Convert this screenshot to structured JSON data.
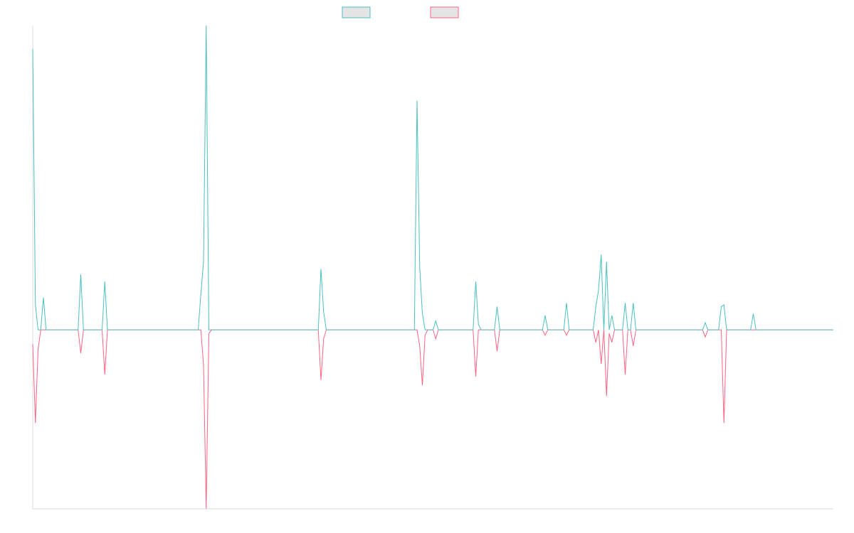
{
  "chart_data": {
    "type": "line",
    "title": "",
    "xlabel": "",
    "ylabel": "",
    "grid": false,
    "legend_placement": "top-center",
    "ylim": [
      -1.0,
      1.7
    ],
    "series": [
      {
        "color": "#4bc0c0",
        "fill": "#e5e5e5",
        "points": [
          [
            0,
            1.57
          ],
          [
            1,
            0.14
          ],
          [
            2,
            0.0
          ],
          [
            3,
            0.0
          ],
          [
            4,
            0.18
          ],
          [
            5,
            0.0
          ],
          [
            6,
            0.0
          ],
          [
            7,
            0.0
          ],
          [
            17,
            0.0
          ],
          [
            18,
            0.31
          ],
          [
            19,
            0.0
          ],
          [
            20,
            0.0
          ],
          [
            26,
            0.0
          ],
          [
            27,
            0.27
          ],
          [
            28,
            0.0
          ],
          [
            29,
            0.0
          ],
          [
            62,
            0.0
          ],
          [
            63,
            0.2
          ],
          [
            64,
            0.38
          ],
          [
            65,
            1.7
          ],
          [
            66,
            0.0
          ],
          [
            67,
            0.0
          ],
          [
            107,
            0.0
          ],
          [
            108,
            0.34
          ],
          [
            109,
            0.1
          ],
          [
            110,
            0.0
          ],
          [
            116,
            0.0
          ],
          [
            117,
            0.0
          ],
          [
            118,
            0.0
          ],
          [
            130,
            0.0
          ],
          [
            131,
            0.0
          ],
          [
            132,
            0.0
          ],
          [
            142,
            0.0
          ],
          [
            143,
            0.0
          ],
          [
            144,
            1.28
          ],
          [
            145,
            0.35
          ],
          [
            146,
            0.09
          ],
          [
            147,
            0.0
          ],
          [
            148,
            0.0
          ],
          [
            150,
            0.0
          ],
          [
            151,
            0.05
          ],
          [
            152,
            0.0
          ],
          [
            165,
            0.0
          ],
          [
            166,
            0.27
          ],
          [
            167,
            0.03
          ],
          [
            168,
            0.0
          ],
          [
            173,
            0.0
          ],
          [
            174,
            0.13
          ],
          [
            175,
            0.0
          ],
          [
            176,
            0.0
          ],
          [
            177,
            0.0
          ],
          [
            191,
            0.0
          ],
          [
            192,
            0.08
          ],
          [
            193,
            0.0
          ],
          [
            194,
            0.0
          ],
          [
            195,
            0.0
          ],
          [
            196,
            0.0
          ],
          [
            199,
            0.0
          ],
          [
            200,
            0.15
          ],
          [
            201,
            0.0
          ],
          [
            209,
            0.0
          ],
          [
            210,
            0.0
          ],
          [
            211,
            0.13
          ],
          [
            212,
            0.22
          ],
          [
            213,
            0.42
          ],
          [
            214,
            0.0
          ],
          [
            215,
            0.38
          ],
          [
            216,
            0.0
          ],
          [
            217,
            0.08
          ],
          [
            218,
            0.0
          ],
          [
            219,
            0.0
          ],
          [
            221,
            0.0
          ],
          [
            222,
            0.15
          ],
          [
            223,
            0.0
          ],
          [
            224,
            0.0
          ],
          [
            225,
            0.15
          ],
          [
            226,
            0.0
          ],
          [
            233,
            0.0
          ],
          [
            234,
            0.0
          ],
          [
            235,
            0.0
          ],
          [
            239,
            0.0
          ],
          [
            240,
            0.0
          ],
          [
            241,
            0.0
          ],
          [
            248,
            0.0
          ],
          [
            249,
            0.0
          ],
          [
            250,
            0.0
          ],
          [
            251,
            0.0
          ],
          [
            252,
            0.04
          ],
          [
            253,
            0.0
          ],
          [
            257,
            0.0
          ],
          [
            258,
            0.13
          ],
          [
            259,
            0.14
          ],
          [
            260,
            0.0
          ],
          [
            267,
            0.0
          ],
          [
            268,
            0.0
          ],
          [
            269,
            0.0
          ],
          [
            270,
            0.09
          ],
          [
            271,
            0.0
          ],
          [
            282,
            0.0
          ],
          [
            283,
            0.0
          ],
          [
            284,
            0.0
          ],
          [
            300,
            0.0
          ]
        ]
      },
      {
        "color": "#ff6384",
        "fill": "#e5e5e5",
        "points": [
          [
            0,
            -0.08
          ],
          [
            1,
            -0.52
          ],
          [
            2,
            -0.11
          ],
          [
            3,
            0.0
          ],
          [
            4,
            0.0
          ],
          [
            5,
            0.0
          ],
          [
            6,
            0.0
          ],
          [
            7,
            0.0
          ],
          [
            17,
            0.0
          ],
          [
            18,
            -0.13
          ],
          [
            19,
            0.0
          ],
          [
            20,
            0.0
          ],
          [
            26,
            0.0
          ],
          [
            27,
            -0.25
          ],
          [
            28,
            0.0
          ],
          [
            29,
            0.0
          ],
          [
            62,
            0.0
          ],
          [
            63,
            0.0
          ],
          [
            64,
            -0.2
          ],
          [
            65,
            -1.0
          ],
          [
            66,
            -0.02
          ],
          [
            67,
            0.0
          ],
          [
            107,
            0.0
          ],
          [
            108,
            -0.28
          ],
          [
            109,
            -0.05
          ],
          [
            110,
            0.0
          ],
          [
            116,
            0.0
          ],
          [
            117,
            0.0
          ],
          [
            118,
            0.0
          ],
          [
            130,
            0.0
          ],
          [
            131,
            0.0
          ],
          [
            132,
            0.0
          ],
          [
            142,
            0.0
          ],
          [
            143,
            0.0
          ],
          [
            144,
            0.0
          ],
          [
            145,
            -0.09
          ],
          [
            146,
            -0.31
          ],
          [
            147,
            -0.03
          ],
          [
            148,
            0.0
          ],
          [
            150,
            0.0
          ],
          [
            151,
            -0.05
          ],
          [
            152,
            0.0
          ],
          [
            165,
            0.0
          ],
          [
            166,
            -0.26
          ],
          [
            167,
            0.0
          ],
          [
            168,
            0.0
          ],
          [
            173,
            0.0
          ],
          [
            174,
            -0.12
          ],
          [
            175,
            0.0
          ],
          [
            176,
            0.0
          ],
          [
            177,
            0.0
          ],
          [
            191,
            0.0
          ],
          [
            192,
            -0.03
          ],
          [
            193,
            0.0
          ],
          [
            194,
            0.0
          ],
          [
            195,
            0.0
          ],
          [
            196,
            0.0
          ],
          [
            199,
            0.0
          ],
          [
            200,
            -0.03
          ],
          [
            201,
            0.0
          ],
          [
            209,
            0.0
          ],
          [
            210,
            0.0
          ],
          [
            211,
            -0.07
          ],
          [
            212,
            0.0
          ],
          [
            213,
            -0.19
          ],
          [
            214,
            0.0
          ],
          [
            215,
            -0.37
          ],
          [
            216,
            -0.02
          ],
          [
            217,
            -0.07
          ],
          [
            218,
            0.0
          ],
          [
            219,
            0.0
          ],
          [
            221,
            0.0
          ],
          [
            222,
            -0.25
          ],
          [
            223,
            0.0
          ],
          [
            224,
            0.0
          ],
          [
            225,
            -0.09
          ],
          [
            226,
            0.0
          ],
          [
            233,
            0.0
          ],
          [
            234,
            0.0
          ],
          [
            235,
            0.0
          ],
          [
            239,
            0.0
          ],
          [
            240,
            0.0
          ],
          [
            241,
            0.0
          ],
          [
            248,
            0.0
          ],
          [
            249,
            0.0
          ],
          [
            250,
            0.0
          ],
          [
            251,
            0.0
          ],
          [
            252,
            -0.04
          ],
          [
            253,
            0.0
          ],
          [
            257,
            0.0
          ],
          [
            258,
            0.0
          ],
          [
            259,
            -0.52
          ],
          [
            260,
            0.0
          ],
          [
            267,
            0.0
          ],
          [
            268,
            0.0
          ],
          [
            269,
            0.0
          ],
          [
            270,
            0.0
          ],
          [
            271,
            0.0
          ],
          [
            282,
            0.0
          ],
          [
            283,
            0.0
          ],
          [
            284,
            0.0
          ],
          [
            300,
            0.0
          ]
        ]
      }
    ]
  }
}
